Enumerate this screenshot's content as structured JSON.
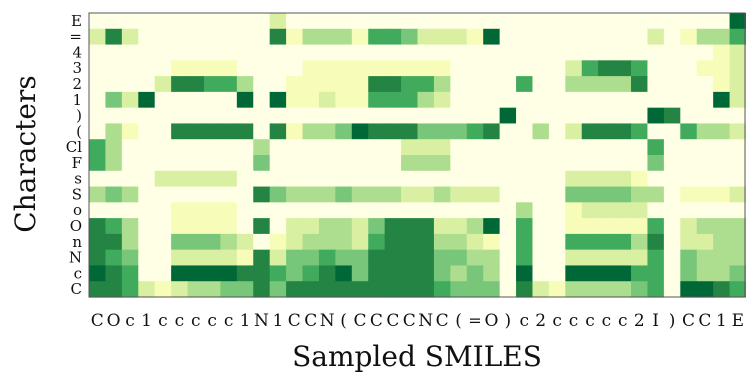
{
  "chart_data": {
    "type": "heatmap",
    "xlabel": "Sampled SMILES",
    "ylabel": "Characters",
    "x_tokens": [
      "C",
      "O",
      "c",
      "1",
      "c",
      "c",
      "c",
      "c",
      "c",
      "1",
      "N",
      "1",
      "C",
      "C",
      "N",
      "(",
      "C",
      "C",
      "C",
      "C",
      "N",
      "C",
      "(",
      "=",
      "O",
      ")",
      "c",
      "2",
      "c",
      "c",
      "c",
      "c",
      "c",
      "2",
      "I",
      ")",
      "C",
      "C",
      "1",
      "E"
    ],
    "y_tokens": [
      "E",
      "=",
      "4",
      "3",
      "2",
      "1",
      ")",
      "(",
      "Cl",
      "F",
      "s",
      "S",
      "o",
      "O",
      "n",
      "N",
      "c",
      "C"
    ],
    "colormap": [
      "#ffffe5",
      "#f7fcb9",
      "#d9f0a3",
      "#addd8e",
      "#78c679",
      "#41ab5d",
      "#238443",
      "#006837"
    ],
    "value_range": [
      0,
      7
    ],
    "grid": false,
    "values": [
      [
        0,
        0,
        0,
        0,
        0,
        0,
        0,
        0,
        0,
        0,
        0,
        2,
        0,
        0,
        0,
        0,
        0,
        0,
        0,
        0,
        0,
        0,
        0,
        0,
        0,
        0,
        0,
        0,
        0,
        0,
        0,
        0,
        0,
        0,
        0,
        0,
        0,
        0,
        0,
        7
      ],
      [
        2,
        6,
        2,
        0,
        0,
        0,
        0,
        0,
        0,
        0,
        0,
        6,
        1,
        3,
        3,
        3,
        1,
        5,
        5,
        4,
        2,
        2,
        2,
        1,
        7,
        0,
        0,
        0,
        0,
        0,
        0,
        0,
        0,
        0,
        2,
        0,
        1,
        3,
        3,
        5
      ],
      [
        0,
        0,
        0,
        0,
        0,
        0,
        0,
        0,
        0,
        0,
        0,
        0,
        0,
        0,
        0,
        0,
        0,
        0,
        0,
        0,
        0,
        0,
        0,
        0,
        0,
        0,
        0,
        0,
        0,
        0,
        0,
        0,
        0,
        0,
        0,
        0,
        0,
        0,
        1,
        2
      ],
      [
        0,
        0,
        0,
        0,
        0,
        1,
        1,
        1,
        1,
        0,
        0,
        0,
        0,
        1,
        1,
        1,
        1,
        1,
        1,
        1,
        1,
        1,
        0,
        0,
        0,
        0,
        0,
        0,
        0,
        2,
        5,
        6,
        6,
        5,
        0,
        0,
        0,
        1,
        1,
        2
      ],
      [
        0,
        0,
        0,
        0,
        2,
        6,
        6,
        5,
        5,
        3,
        0,
        0,
        1,
        1,
        1,
        1,
        1,
        6,
        6,
        5,
        5,
        3,
        0,
        0,
        0,
        0,
        5,
        0,
        0,
        3,
        3,
        3,
        3,
        6,
        0,
        0,
        0,
        0,
        1,
        2
      ],
      [
        0,
        4,
        2,
        7,
        0,
        0,
        0,
        0,
        0,
        7,
        0,
        7,
        1,
        1,
        2,
        1,
        1,
        5,
        5,
        5,
        3,
        2,
        0,
        0,
        0,
        0,
        0,
        0,
        0,
        0,
        0,
        0,
        0,
        0,
        0,
        0,
        0,
        0,
        7,
        2
      ],
      [
        0,
        0,
        0,
        0,
        0,
        0,
        0,
        0,
        0,
        0,
        0,
        0,
        0,
        0,
        0,
        0,
        0,
        0,
        0,
        0,
        0,
        0,
        0,
        0,
        0,
        7,
        0,
        0,
        0,
        0,
        0,
        0,
        0,
        0,
        7,
        6,
        0,
        0,
        0,
        0
      ],
      [
        0,
        3,
        1,
        0,
        0,
        6,
        6,
        6,
        6,
        6,
        0,
        6,
        1,
        3,
        3,
        4,
        7,
        6,
        6,
        6,
        4,
        4,
        4,
        5,
        6,
        0,
        0,
        3,
        0,
        2,
        6,
        6,
        6,
        5,
        0,
        0,
        5,
        3,
        3,
        2
      ],
      [
        5,
        3,
        0,
        0,
        0,
        0,
        0,
        0,
        0,
        0,
        3,
        0,
        0,
        0,
        0,
        0,
        0,
        0,
        0,
        2,
        2,
        2,
        0,
        0,
        0,
        0,
        0,
        0,
        0,
        0,
        0,
        0,
        0,
        0,
        5,
        0,
        0,
        0,
        0,
        0
      ],
      [
        5,
        3,
        0,
        0,
        0,
        0,
        0,
        0,
        0,
        0,
        4,
        0,
        0,
        0,
        0,
        0,
        0,
        0,
        0,
        3,
        3,
        3,
        0,
        0,
        0,
        0,
        0,
        0,
        0,
        0,
        0,
        0,
        0,
        0,
        4,
        0,
        0,
        0,
        0,
        0
      ],
      [
        0,
        0,
        0,
        0,
        2,
        2,
        2,
        2,
        2,
        0,
        0,
        0,
        0,
        0,
        0,
        0,
        0,
        0,
        0,
        0,
        0,
        0,
        0,
        0,
        0,
        0,
        0,
        0,
        0,
        2,
        2,
        2,
        2,
        1,
        0,
        0,
        0,
        0,
        0,
        0
      ],
      [
        3,
        4,
        3,
        0,
        0,
        0,
        0,
        0,
        0,
        0,
        6,
        4,
        3,
        3,
        3,
        4,
        3,
        3,
        3,
        2,
        2,
        3,
        2,
        2,
        2,
        0,
        0,
        0,
        0,
        4,
        4,
        4,
        4,
        3,
        3,
        0,
        1,
        1,
        1,
        2
      ],
      [
        0,
        0,
        0,
        0,
        0,
        1,
        1,
        1,
        1,
        0,
        0,
        0,
        0,
        0,
        0,
        0,
        0,
        0,
        0,
        0,
        0,
        0,
        0,
        0,
        0,
        0,
        3,
        0,
        0,
        1,
        2,
        2,
        2,
        2,
        0,
        0,
        0,
        0,
        0,
        0
      ],
      [
        6,
        5,
        3,
        0,
        0,
        1,
        1,
        1,
        1,
        0,
        6,
        0,
        2,
        2,
        3,
        3,
        2,
        4,
        6,
        6,
        6,
        2,
        2,
        3,
        7,
        0,
        5,
        0,
        0,
        1,
        1,
        1,
        1,
        1,
        5,
        0,
        2,
        3,
        3,
        3
      ],
      [
        6,
        6,
        3,
        0,
        0,
        4,
        4,
        4,
        3,
        2,
        0,
        1,
        2,
        3,
        3,
        3,
        2,
        5,
        6,
        6,
        6,
        3,
        3,
        2,
        1,
        0,
        5,
        0,
        0,
        5,
        5,
        5,
        5,
        3,
        6,
        0,
        2,
        2,
        3,
        3
      ],
      [
        6,
        5,
        4,
        0,
        0,
        2,
        2,
        2,
        2,
        1,
        6,
        2,
        4,
        4,
        5,
        4,
        4,
        6,
        6,
        6,
        6,
        4,
        4,
        3,
        3,
        0,
        5,
        0,
        0,
        2,
        2,
        2,
        2,
        2,
        5,
        0,
        4,
        3,
        3,
        3
      ],
      [
        7,
        6,
        5,
        0,
        0,
        7,
        7,
        7,
        7,
        6,
        6,
        5,
        4,
        5,
        6,
        7,
        4,
        6,
        6,
        6,
        6,
        4,
        3,
        4,
        3,
        0,
        7,
        0,
        0,
        7,
        7,
        7,
        7,
        5,
        5,
        0,
        4,
        3,
        3,
        4
      ],
      [
        6,
        6,
        5,
        2,
        1,
        2,
        3,
        3,
        4,
        4,
        6,
        4,
        6,
        6,
        6,
        6,
        6,
        6,
        6,
        6,
        6,
        5,
        4,
        4,
        4,
        0,
        6,
        2,
        1,
        3,
        3,
        3,
        3,
        4,
        5,
        0,
        7,
        7,
        6,
        5
      ]
    ]
  }
}
